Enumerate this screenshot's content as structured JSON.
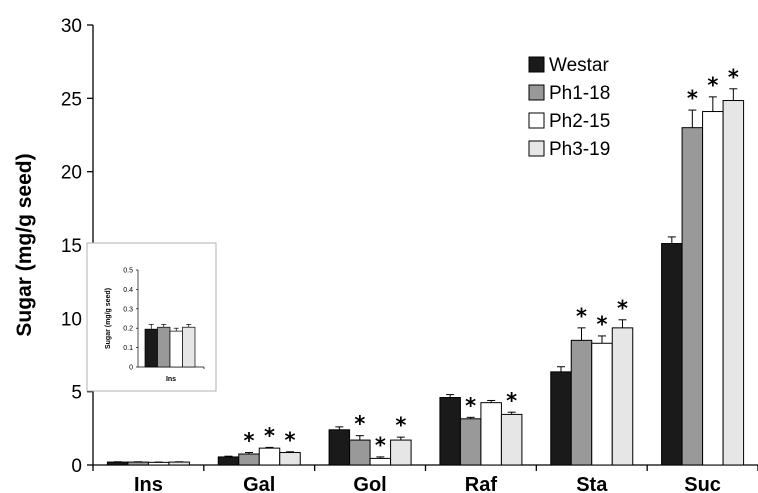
{
  "chart_data": [
    {
      "type": "bar",
      "ylabel": "Sugar (mg/g seed)",
      "xlabel": "",
      "ylim": [
        0,
        30
      ],
      "yticks": [
        "0",
        "5",
        "10",
        "15",
        "20",
        "25",
        "30"
      ],
      "categories": [
        "Ins",
        "Gal",
        "Gol",
        "Raf",
        "Sta",
        "Suc"
      ],
      "legend_position": "top-right",
      "series": [
        {
          "name": "Westar",
          "color": "#1a1a1a",
          "values": [
            0.2,
            0.55,
            2.4,
            4.6,
            6.35,
            15.1
          ],
          "errors": [
            0.02,
            0.05,
            0.2,
            0.2,
            0.35,
            0.45
          ],
          "significant": [
            false,
            false,
            false,
            false,
            false,
            false
          ]
        },
        {
          "name": "Ph1-18",
          "color": "#999999",
          "values": [
            0.2,
            0.75,
            1.7,
            3.15,
            8.5,
            23.0
          ],
          "errors": [
            0.02,
            0.1,
            0.3,
            0.1,
            0.85,
            1.2
          ],
          "significant": [
            false,
            true,
            true,
            true,
            true,
            true
          ]
        },
        {
          "name": "Ph2-15",
          "color": "#ffffff",
          "values": [
            0.18,
            1.15,
            0.45,
            4.25,
            8.3,
            24.1
          ],
          "errors": [
            0.02,
            0.05,
            0.1,
            0.15,
            0.5,
            1.0
          ],
          "significant": [
            false,
            true,
            true,
            false,
            true,
            true
          ]
        },
        {
          "name": "Ph3-19",
          "color": "#e6e6e6",
          "values": [
            0.2,
            0.85,
            1.7,
            3.45,
            9.35,
            24.85
          ],
          "errors": [
            0.02,
            0.05,
            0.2,
            0.15,
            0.55,
            0.8
          ],
          "significant": [
            false,
            true,
            true,
            true,
            true,
            true
          ]
        }
      ],
      "significance_marker": "*"
    },
    {
      "type": "bar",
      "ylabel": "Sugar (mg/g seed)",
      "xlabel": "Ins",
      "ylim": [
        0,
        0.5
      ],
      "yticks": [
        "0",
        "0.1",
        "0.2",
        "0.3",
        "0.4",
        "0.5"
      ],
      "categories": [
        "Ins"
      ],
      "series": [
        {
          "name": "Westar",
          "color": "#1a1a1a",
          "values": [
            0.195
          ],
          "errors": [
            0.025
          ]
        },
        {
          "name": "Ph1-18",
          "color": "#999999",
          "values": [
            0.205
          ],
          "errors": [
            0.015
          ]
        },
        {
          "name": "Ph2-15",
          "color": "#ffffff",
          "values": [
            0.185
          ],
          "errors": [
            0.015
          ]
        },
        {
          "name": "Ph3-19",
          "color": "#e6e6e6",
          "values": [
            0.205
          ],
          "errors": [
            0.015
          ]
        }
      ]
    }
  ]
}
